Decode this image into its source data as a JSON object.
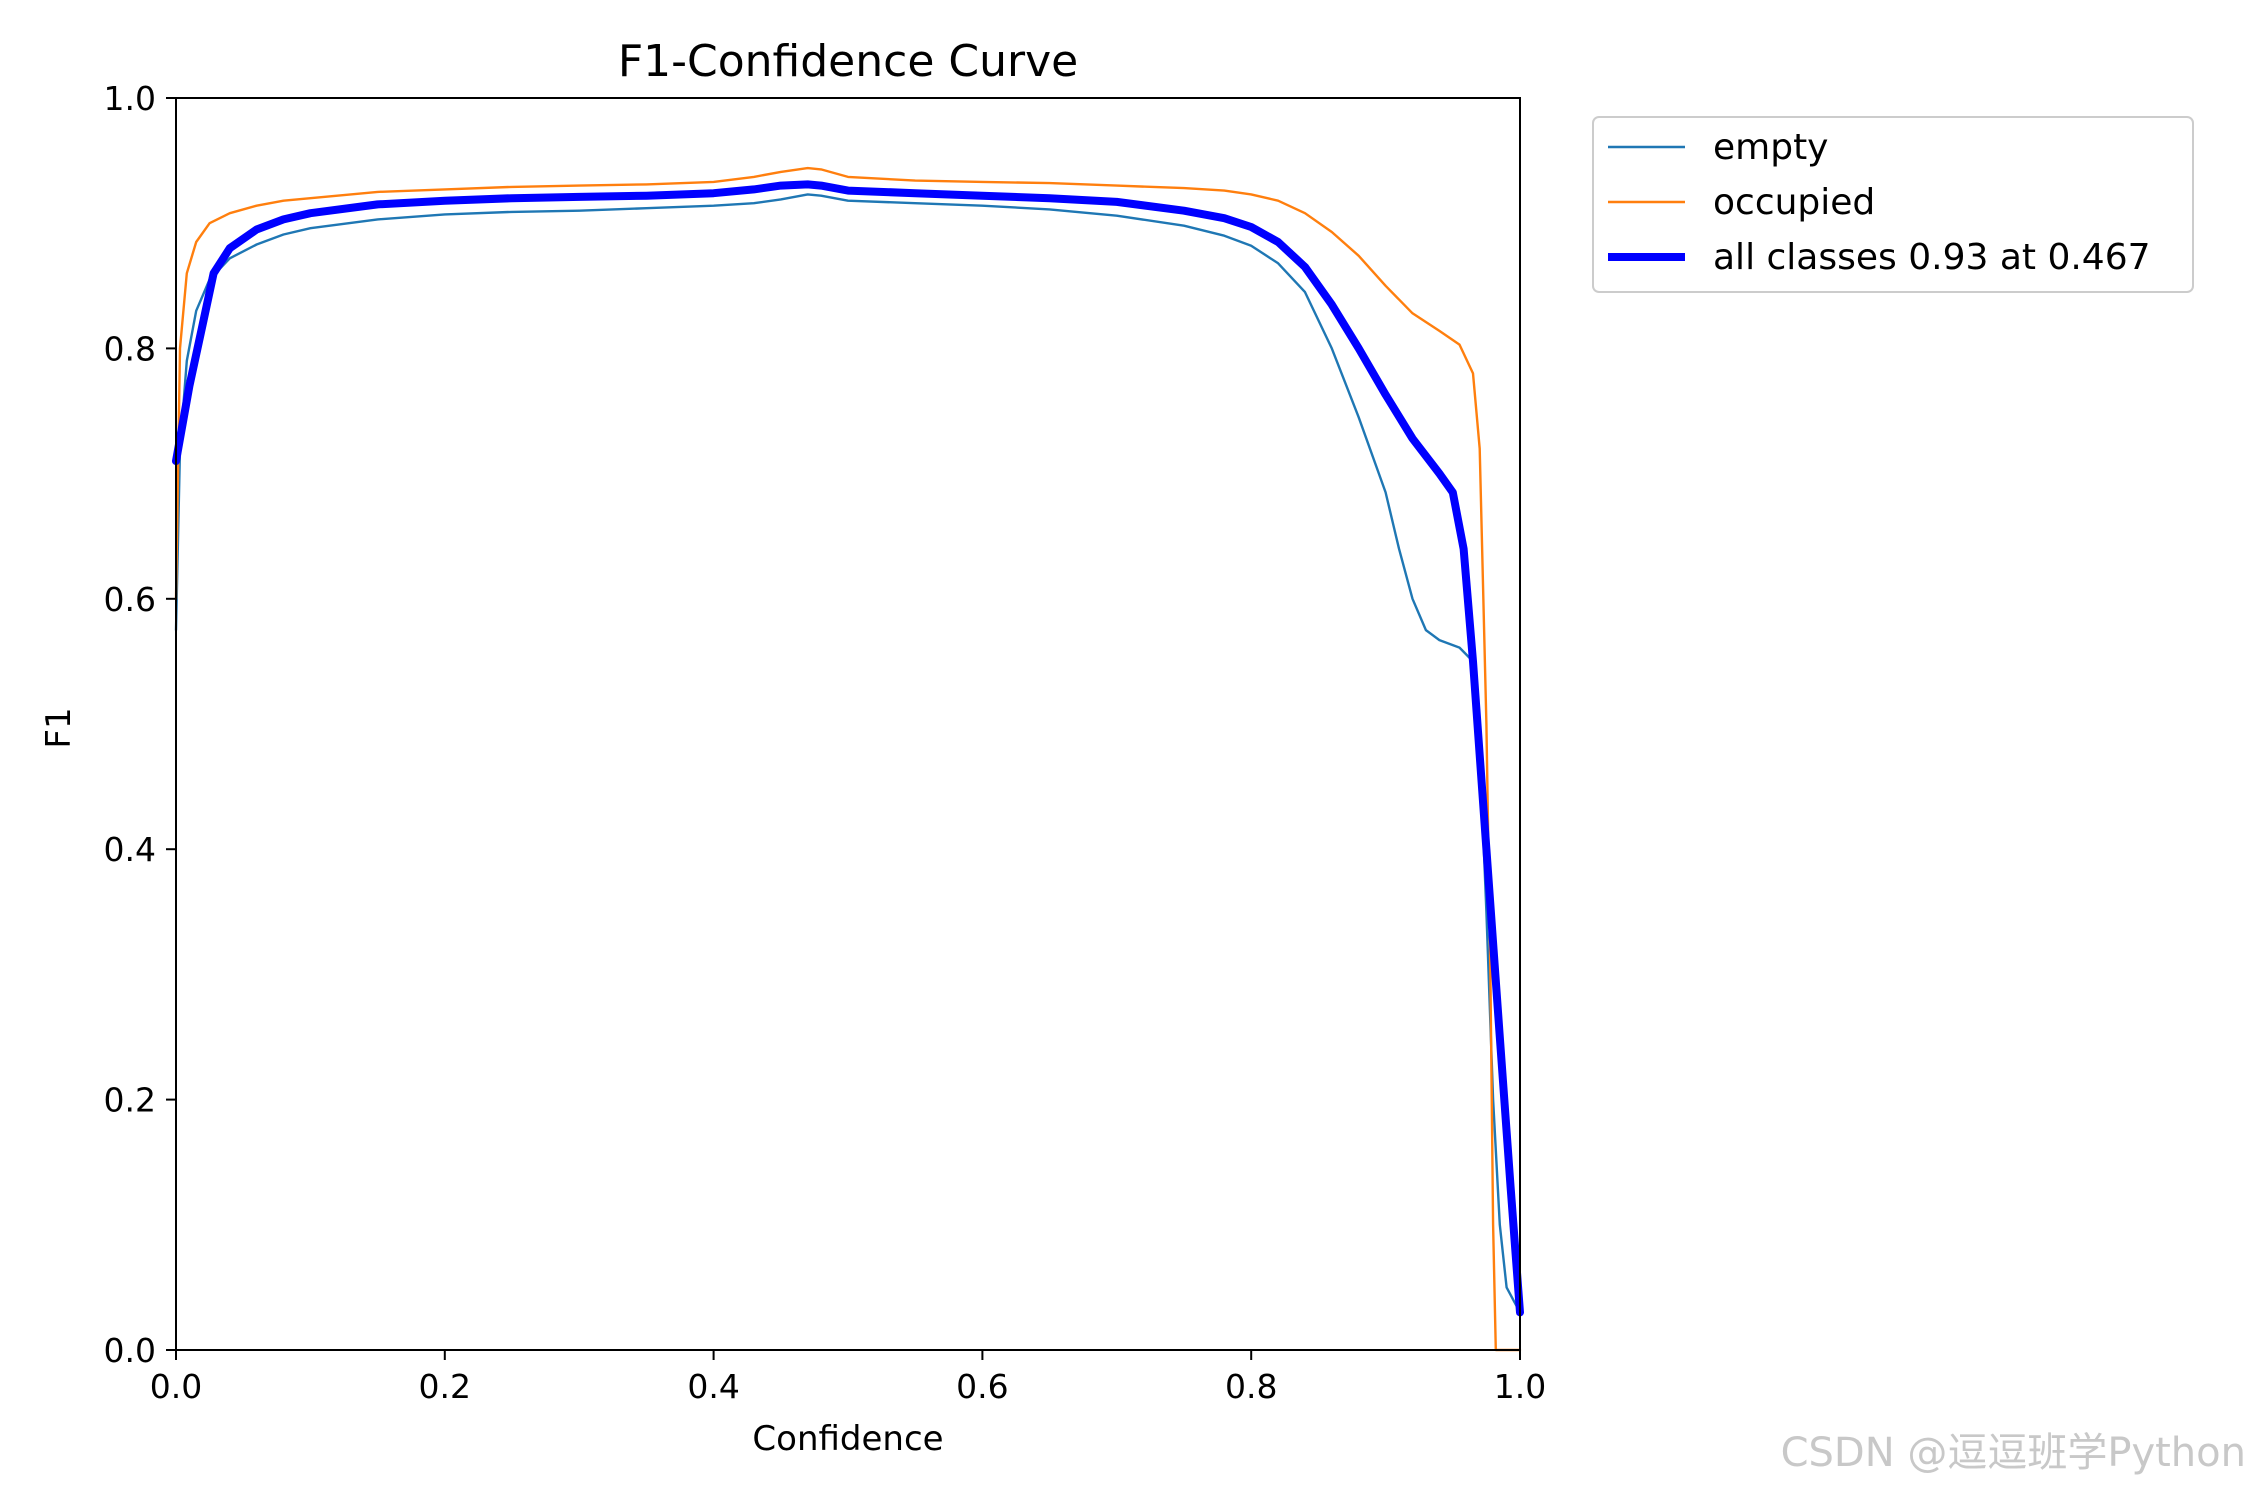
{
  "watermark": "CSDN @逗逗班学Python",
  "chart_data": {
    "type": "line",
    "title": "F1-Confidence Curve",
    "xlabel": "Confidence",
    "ylabel": "F1",
    "xlim": [
      0.0,
      1.0
    ],
    "ylim": [
      0.0,
      1.0
    ],
    "xticks": [
      "0.0",
      "0.2",
      "0.4",
      "0.6",
      "0.8",
      "1.0"
    ],
    "yticks": [
      "0.0",
      "0.2",
      "0.4",
      "0.6",
      "0.8",
      "1.0"
    ],
    "grid": false,
    "legend_position": "outside-top-right",
    "series": [
      {
        "name": "empty",
        "color": "#1f77b4",
        "points": [
          [
            0.0,
            0.575
          ],
          [
            0.003,
            0.72
          ],
          [
            0.008,
            0.79
          ],
          [
            0.015,
            0.83
          ],
          [
            0.025,
            0.855
          ],
          [
            0.04,
            0.872
          ],
          [
            0.06,
            0.883
          ],
          [
            0.08,
            0.891
          ],
          [
            0.1,
            0.896
          ],
          [
            0.15,
            0.903
          ],
          [
            0.2,
            0.907
          ],
          [
            0.25,
            0.909
          ],
          [
            0.3,
            0.91
          ],
          [
            0.35,
            0.912
          ],
          [
            0.4,
            0.914
          ],
          [
            0.43,
            0.916
          ],
          [
            0.45,
            0.919
          ],
          [
            0.47,
            0.923
          ],
          [
            0.48,
            0.922
          ],
          [
            0.5,
            0.918
          ],
          [
            0.55,
            0.916
          ],
          [
            0.6,
            0.914
          ],
          [
            0.65,
            0.911
          ],
          [
            0.7,
            0.906
          ],
          [
            0.75,
            0.898
          ],
          [
            0.78,
            0.89
          ],
          [
            0.8,
            0.882
          ],
          [
            0.82,
            0.868
          ],
          [
            0.84,
            0.845
          ],
          [
            0.86,
            0.8
          ],
          [
            0.88,
            0.745
          ],
          [
            0.9,
            0.685
          ],
          [
            0.91,
            0.64
          ],
          [
            0.92,
            0.6
          ],
          [
            0.93,
            0.575
          ],
          [
            0.94,
            0.567
          ],
          [
            0.955,
            0.561
          ],
          [
            0.965,
            0.55
          ],
          [
            0.97,
            0.48
          ],
          [
            0.975,
            0.35
          ],
          [
            0.98,
            0.2
          ],
          [
            0.985,
            0.1
          ],
          [
            0.99,
            0.05
          ],
          [
            1.0,
            0.03
          ]
        ]
      },
      {
        "name": "occupied",
        "color": "#ff7f0e",
        "points": [
          [
            0.0,
            0.6
          ],
          [
            0.003,
            0.8
          ],
          [
            0.008,
            0.86
          ],
          [
            0.015,
            0.885
          ],
          [
            0.025,
            0.9
          ],
          [
            0.04,
            0.908
          ],
          [
            0.06,
            0.914
          ],
          [
            0.08,
            0.918
          ],
          [
            0.1,
            0.92
          ],
          [
            0.15,
            0.925
          ],
          [
            0.2,
            0.927
          ],
          [
            0.25,
            0.929
          ],
          [
            0.3,
            0.93
          ],
          [
            0.35,
            0.931
          ],
          [
            0.4,
            0.933
          ],
          [
            0.43,
            0.937
          ],
          [
            0.45,
            0.941
          ],
          [
            0.47,
            0.944
          ],
          [
            0.48,
            0.943
          ],
          [
            0.5,
            0.937
          ],
          [
            0.55,
            0.934
          ],
          [
            0.6,
            0.933
          ],
          [
            0.65,
            0.932
          ],
          [
            0.7,
            0.93
          ],
          [
            0.75,
            0.928
          ],
          [
            0.78,
            0.926
          ],
          [
            0.8,
            0.923
          ],
          [
            0.82,
            0.918
          ],
          [
            0.84,
            0.908
          ],
          [
            0.86,
            0.893
          ],
          [
            0.88,
            0.874
          ],
          [
            0.9,
            0.85
          ],
          [
            0.92,
            0.828
          ],
          [
            0.94,
            0.814
          ],
          [
            0.955,
            0.803
          ],
          [
            0.965,
            0.78
          ],
          [
            0.97,
            0.72
          ],
          [
            0.975,
            0.5
          ],
          [
            0.978,
            0.3
          ],
          [
            0.98,
            0.1
          ],
          [
            0.982,
            0.0
          ],
          [
            1.0,
            0.0
          ]
        ]
      },
      {
        "name": "all classes 0.93 at 0.467",
        "color": "#0000ff",
        "points": [
          [
            0.0,
            0.71
          ],
          [
            0.01,
            0.77
          ],
          [
            0.02,
            0.82
          ],
          [
            0.028,
            0.86
          ],
          [
            0.04,
            0.88
          ],
          [
            0.06,
            0.895
          ],
          [
            0.08,
            0.903
          ],
          [
            0.1,
            0.908
          ],
          [
            0.15,
            0.915
          ],
          [
            0.2,
            0.918
          ],
          [
            0.25,
            0.92
          ],
          [
            0.3,
            0.921
          ],
          [
            0.35,
            0.922
          ],
          [
            0.4,
            0.924
          ],
          [
            0.43,
            0.927
          ],
          [
            0.45,
            0.93
          ],
          [
            0.47,
            0.931
          ],
          [
            0.48,
            0.93
          ],
          [
            0.5,
            0.926
          ],
          [
            0.55,
            0.924
          ],
          [
            0.6,
            0.922
          ],
          [
            0.65,
            0.92
          ],
          [
            0.7,
            0.917
          ],
          [
            0.75,
            0.91
          ],
          [
            0.78,
            0.904
          ],
          [
            0.8,
            0.897
          ],
          [
            0.82,
            0.885
          ],
          [
            0.84,
            0.865
          ],
          [
            0.86,
            0.835
          ],
          [
            0.88,
            0.8
          ],
          [
            0.9,
            0.763
          ],
          [
            0.92,
            0.728
          ],
          [
            0.94,
            0.7
          ],
          [
            0.95,
            0.685
          ],
          [
            0.958,
            0.64
          ],
          [
            0.965,
            0.55
          ],
          [
            0.975,
            0.4
          ],
          [
            0.985,
            0.25
          ],
          [
            0.993,
            0.13
          ],
          [
            1.0,
            0.03
          ]
        ]
      }
    ]
  }
}
